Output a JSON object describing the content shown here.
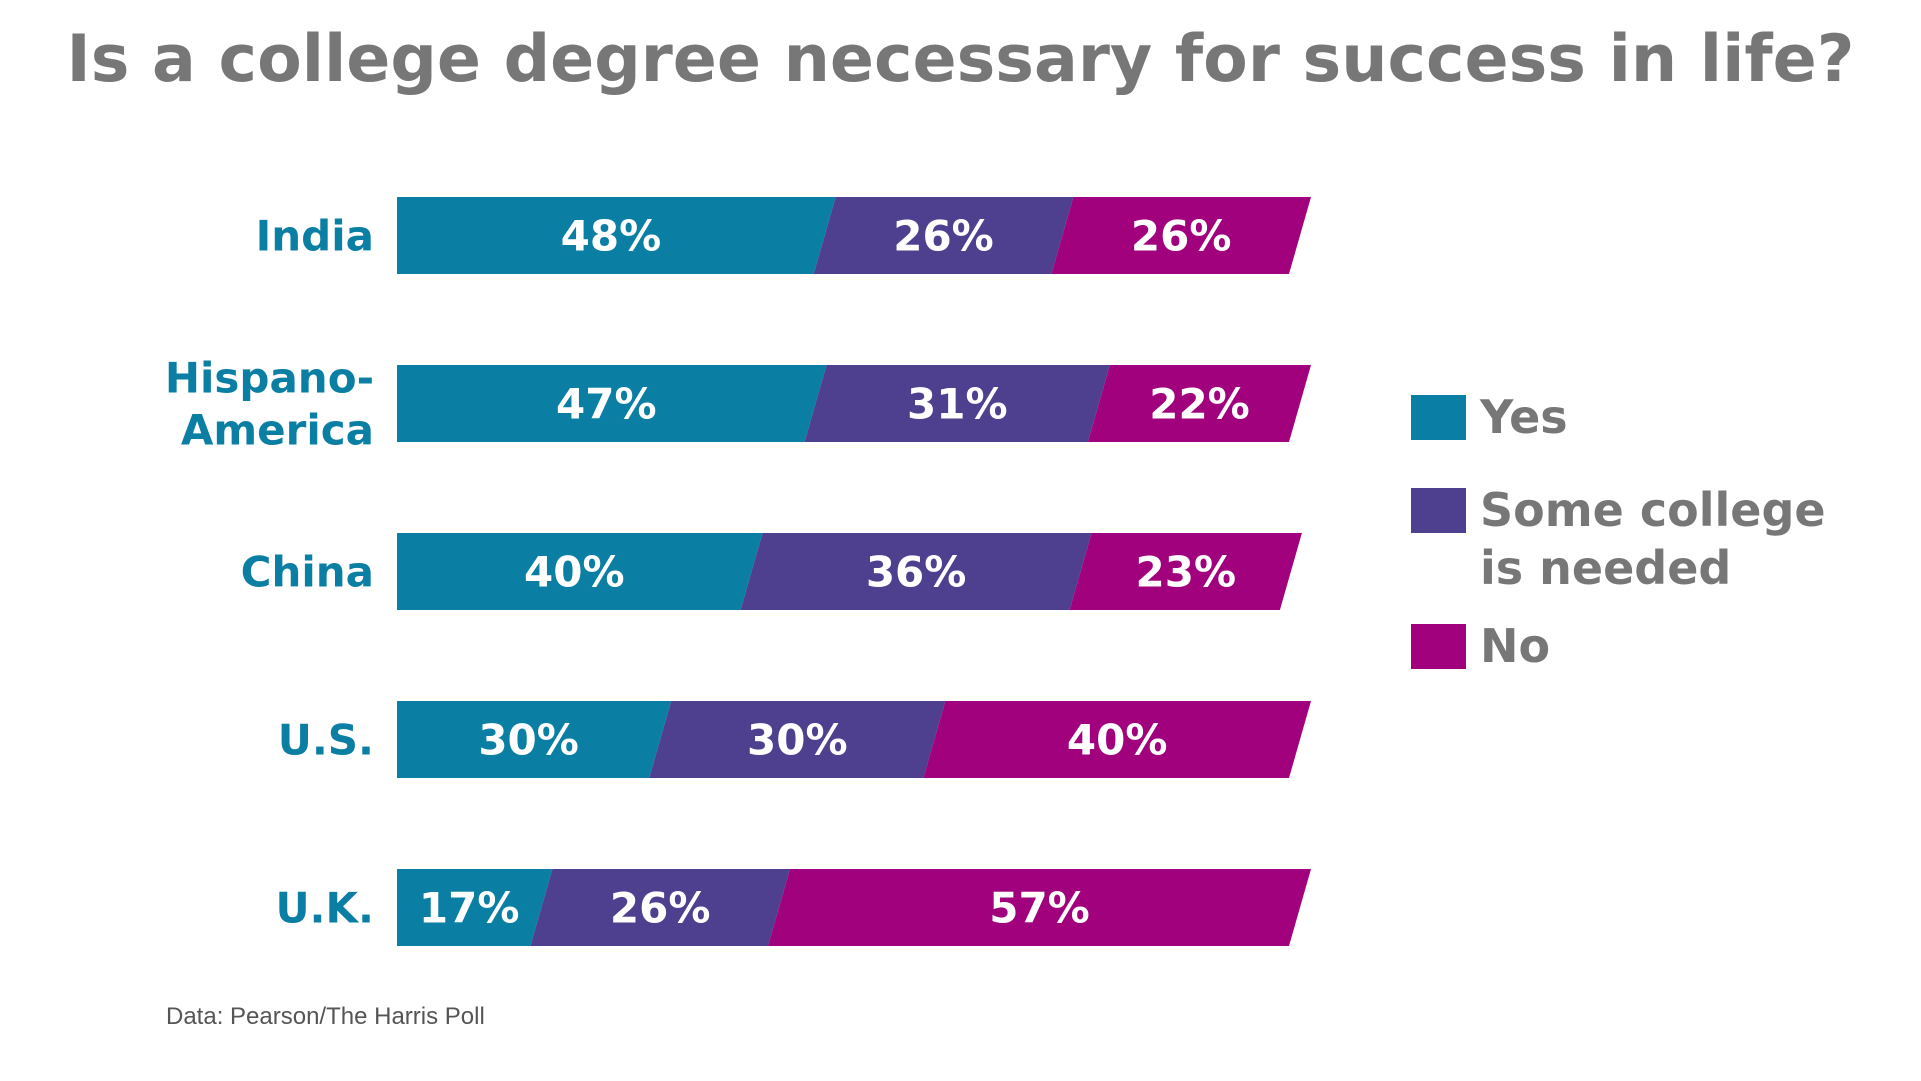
{
  "chart_data": {
    "type": "bar",
    "orientation": "horizontal",
    "stacked": true,
    "title": "Is a college degree necessary for success in life?",
    "categories": [
      "India",
      "Hispano-America",
      "China",
      "U.S.",
      "U.K."
    ],
    "category_lines": [
      [
        "India"
      ],
      [
        "Hispano-",
        "America"
      ],
      [
        "China"
      ],
      [
        "U.S."
      ],
      [
        "U.K."
      ]
    ],
    "series": [
      {
        "name": "Yes",
        "color": "#0a7fa3",
        "values": [
          48,
          47,
          40,
          30,
          17
        ]
      },
      {
        "name": "Some college is needed",
        "legend_lines": [
          "Some college",
          "is needed"
        ],
        "color": "#4e408f",
        "values": [
          26,
          31,
          36,
          30,
          26
        ]
      },
      {
        "name": "No",
        "color": "#a2017e",
        "values": [
          26,
          22,
          23,
          40,
          57
        ]
      }
    ],
    "value_format": "%",
    "xlim": [
      0,
      100
    ],
    "grid": false,
    "legend_position": "right",
    "source": "Data: Pearson/The Harris Poll"
  }
}
